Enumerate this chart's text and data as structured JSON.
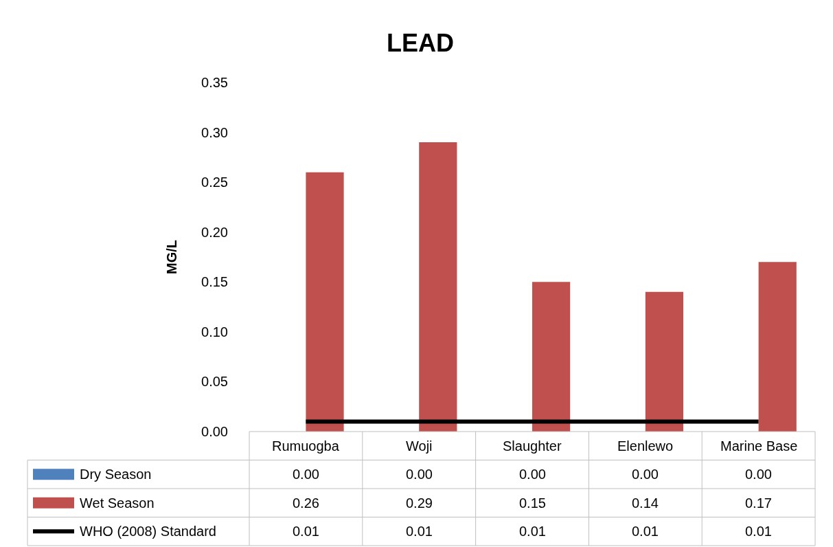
{
  "chart_data": {
    "type": "bar",
    "title": "LEAD",
    "ylabel": "MG/L",
    "categories": [
      "Rumuogba",
      "Woji",
      "Slaughter",
      "Elenlewo",
      "Marine Base"
    ],
    "series": [
      {
        "name": "Dry Season",
        "color": "#4f81bd",
        "values": [
          0,
          0,
          0,
          0,
          0
        ],
        "value_labels": [
          "0.00",
          "0.00",
          "0.00",
          "0.00",
          "0.00"
        ]
      },
      {
        "name": "Wet Season",
        "color": "#c0504d",
        "values": [
          0.26,
          0.29,
          0.15,
          0.14,
          0.17
        ],
        "value_labels": [
          "0.26",
          "0.29",
          "0.15",
          "0.14",
          "0.17"
        ]
      },
      {
        "name": "WHO (2008) Standard",
        "type": "line",
        "color": "#000000",
        "values": [
          0.01,
          0.01,
          0.01,
          0.01,
          0.01
        ],
        "value_labels": [
          "0.01",
          "0.01",
          "0.01",
          "0.01",
          "0.01"
        ]
      }
    ],
    "ylim": [
      0,
      0.35
    ],
    "yticks": [
      {
        "value": 0,
        "label": "0.00"
      },
      {
        "value": 0.05,
        "label": "0.05"
      },
      {
        "value": 0.1,
        "label": "0.10"
      },
      {
        "value": 0.15,
        "label": "0.15"
      },
      {
        "value": 0.2,
        "label": "0.20"
      },
      {
        "value": 0.25,
        "label": "0.25"
      },
      {
        "value": 0.3,
        "label": "0.30"
      },
      {
        "value": 0.35,
        "label": "0.35"
      }
    ],
    "legend": "bottom"
  }
}
